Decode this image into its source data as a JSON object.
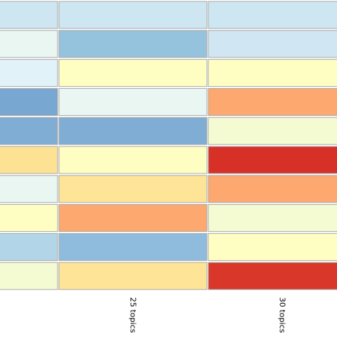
{
  "chart_data": {
    "type": "heatmap",
    "title": "",
    "xlabel": "",
    "ylabel": "",
    "grid": true,
    "x": [
      "",
      "25 topics",
      "30 topics"
    ],
    "rows": 10,
    "cells": [
      [
        "#cde6f1",
        "#cde6f1",
        "#cde6f1"
      ],
      [
        "#e9f6f2",
        "#95c3dd",
        "#d0e7f3"
      ],
      [
        "#e1f2f9",
        "#fefec3",
        "#fefec3"
      ],
      [
        "#78a7d1",
        "#e9f6f2",
        "#fca86f"
      ],
      [
        "#80add4",
        "#80add4",
        "#f4fbd2"
      ],
      [
        "#fee293",
        "#fefec3",
        "#d73027"
      ],
      [
        "#e9f6f2",
        "#fee496",
        "#fca86f"
      ],
      [
        "#fefec3",
        "#fca86f",
        "#f4fbd2"
      ],
      [
        "#b3d5e8",
        "#8fbcdc",
        "#fefec3"
      ],
      [
        "#f4fbd2",
        "#fee496",
        "#d9372a"
      ]
    ]
  }
}
